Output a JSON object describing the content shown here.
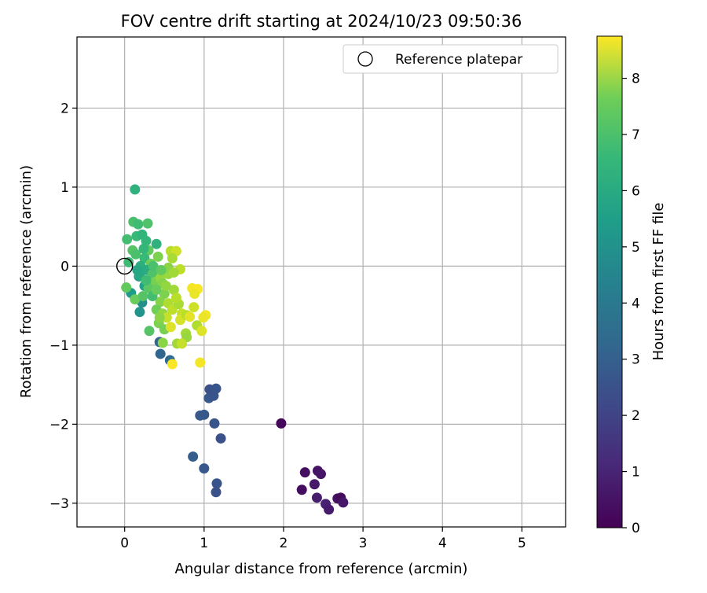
{
  "chart_data": {
    "type": "scatter",
    "title": "FOV centre drift starting at 2024/10/23 09:50:36",
    "xlabel": "Angular distance from reference (arcmin)",
    "ylabel": "Rotation from reference (arcmin)",
    "xlim": [
      -0.6,
      5.55
    ],
    "ylim": [
      -3.3,
      2.9
    ],
    "xticks": [
      0,
      1,
      2,
      3,
      4,
      5
    ],
    "yticks": [
      -3,
      -2,
      -1,
      0,
      1,
      2
    ],
    "grid": true,
    "legend": {
      "position": "top-right",
      "entries": [
        "Reference platepar"
      ]
    },
    "reference_point": {
      "x": 0,
      "y": 0
    },
    "colorbar": {
      "label": "Hours from first FF file",
      "colormap": "viridis",
      "range": [
        0,
        8.75
      ],
      "ticks": [
        0,
        1,
        2,
        3,
        4,
        5,
        6,
        7,
        8
      ]
    },
    "series": [
      {
        "points": [
          {
            "x": 1.97,
            "y": -1.99,
            "c": 0.15
          },
          {
            "x": 2.27,
            "y": -2.61,
            "c": 0.35
          },
          {
            "x": 2.43,
            "y": -2.59,
            "c": 0.45
          },
          {
            "x": 2.47,
            "y": -2.63,
            "c": 0.5
          },
          {
            "x": 2.23,
            "y": -2.83,
            "c": 0.3
          },
          {
            "x": 2.39,
            "y": -2.76,
            "c": 0.6
          },
          {
            "x": 2.42,
            "y": -2.93,
            "c": 0.7
          },
          {
            "x": 2.68,
            "y": -2.94,
            "c": 0.4
          },
          {
            "x": 2.72,
            "y": -2.93,
            "c": 0.25
          },
          {
            "x": 2.75,
            "y": -2.99,
            "c": 0.55
          },
          {
            "x": 2.53,
            "y": -3.01,
            "c": 0.8
          },
          {
            "x": 2.57,
            "y": -3.08,
            "c": 0.65
          },
          {
            "x": 1.07,
            "y": -1.56,
            "c": 2.2
          },
          {
            "x": 1.15,
            "y": -1.55,
            "c": 2.3
          },
          {
            "x": 1.06,
            "y": -1.67,
            "c": 2.4
          },
          {
            "x": 1.12,
            "y": -1.64,
            "c": 2.3
          },
          {
            "x": 0.95,
            "y": -1.89,
            "c": 2.5
          },
          {
            "x": 1.0,
            "y": -1.88,
            "c": 2.4
          },
          {
            "x": 1.13,
            "y": -1.99,
            "c": 2.3
          },
          {
            "x": 1.21,
            "y": -2.18,
            "c": 2.2
          },
          {
            "x": 0.86,
            "y": -2.41,
            "c": 2.6
          },
          {
            "x": 1.0,
            "y": -2.56,
            "c": 2.4
          },
          {
            "x": 1.16,
            "y": -2.75,
            "c": 2.3
          },
          {
            "x": 1.15,
            "y": -2.86,
            "c": 2.2
          },
          {
            "x": 0.44,
            "y": -0.96,
            "c": 2.8
          },
          {
            "x": 0.45,
            "y": -1.11,
            "c": 2.9
          },
          {
            "x": 0.57,
            "y": -1.19,
            "c": 3.0
          },
          {
            "x": 0.22,
            "y": -0.46,
            "c": 4.3
          },
          {
            "x": 0.19,
            "y": -0.58,
            "c": 4.5
          },
          {
            "x": 0.08,
            "y": -0.34,
            "c": 4.8
          },
          {
            "x": 0.18,
            "y": -0.13,
            "c": 4.6
          },
          {
            "x": 0.25,
            "y": -0.25,
            "c": 5.0
          },
          {
            "x": 0.13,
            "y": 0.97,
            "c": 5.6
          },
          {
            "x": 0.11,
            "y": 0.56,
            "c": 6.2
          },
          {
            "x": 0.17,
            "y": 0.53,
            "c": 6.0
          },
          {
            "x": 0.29,
            "y": 0.54,
            "c": 6.3
          },
          {
            "x": 0.03,
            "y": 0.34,
            "c": 6.1
          },
          {
            "x": 0.15,
            "y": 0.38,
            "c": 5.9
          },
          {
            "x": 0.22,
            "y": 0.4,
            "c": 5.7
          },
          {
            "x": 0.27,
            "y": 0.32,
            "c": 5.8
          },
          {
            "x": 0.4,
            "y": 0.28,
            "c": 5.6
          },
          {
            "x": 0.1,
            "y": 0.2,
            "c": 6.4
          },
          {
            "x": 0.14,
            "y": 0.15,
            "c": 6.2
          },
          {
            "x": 0.3,
            "y": 0.2,
            "c": 6.6
          },
          {
            "x": 0.25,
            "y": 0.1,
            "c": 5.9
          },
          {
            "x": 0.05,
            "y": 0.05,
            "c": 6.0
          },
          {
            "x": 0.2,
            "y": 0.0,
            "c": 5.5
          },
          {
            "x": 0.33,
            "y": 0.03,
            "c": 6.8
          },
          {
            "x": 0.28,
            "y": -0.05,
            "c": 5.4
          },
          {
            "x": 0.19,
            "y": -0.12,
            "c": 5.3
          },
          {
            "x": 0.35,
            "y": -0.1,
            "c": 6.3
          },
          {
            "x": 0.42,
            "y": 0.12,
            "c": 7.0
          },
          {
            "x": 0.38,
            "y": -0.2,
            "c": 6.9
          },
          {
            "x": 0.3,
            "y": -0.28,
            "c": 6.5
          },
          {
            "x": 0.02,
            "y": -0.27,
            "c": 6.6
          },
          {
            "x": 0.13,
            "y": -0.42,
            "c": 6.7
          },
          {
            "x": 0.23,
            "y": -0.38,
            "c": 6.4
          },
          {
            "x": 0.45,
            "y": -0.15,
            "c": 7.3
          },
          {
            "x": 0.48,
            "y": -0.22,
            "c": 7.1
          },
          {
            "x": 0.55,
            "y": -0.1,
            "c": 7.4
          },
          {
            "x": 0.58,
            "y": 0.19,
            "c": 7.8
          },
          {
            "x": 0.65,
            "y": 0.19,
            "c": 8.1
          },
          {
            "x": 0.6,
            "y": 0.1,
            "c": 7.6
          },
          {
            "x": 0.7,
            "y": -0.04,
            "c": 7.9
          },
          {
            "x": 0.55,
            "y": -0.02,
            "c": 7.2
          },
          {
            "x": 0.62,
            "y": -0.3,
            "c": 7.5
          },
          {
            "x": 0.5,
            "y": -0.35,
            "c": 7.0
          },
          {
            "x": 0.45,
            "y": -0.45,
            "c": 7.1
          },
          {
            "x": 0.4,
            "y": -0.55,
            "c": 6.8
          },
          {
            "x": 0.55,
            "y": -0.47,
            "c": 7.7
          },
          {
            "x": 0.6,
            "y": -0.55,
            "c": 7.9
          },
          {
            "x": 0.68,
            "y": -0.48,
            "c": 7.6
          },
          {
            "x": 0.72,
            "y": -0.6,
            "c": 8.0
          },
          {
            "x": 0.48,
            "y": -0.6,
            "c": 7.3
          },
          {
            "x": 0.43,
            "y": -0.72,
            "c": 7.0
          },
          {
            "x": 0.5,
            "y": -0.8,
            "c": 6.9
          },
          {
            "x": 0.58,
            "y": -0.77,
            "c": 8.3
          },
          {
            "x": 0.7,
            "y": -0.68,
            "c": 8.2
          },
          {
            "x": 0.78,
            "y": -0.62,
            "c": 7.8
          },
          {
            "x": 0.77,
            "y": -0.85,
            "c": 7.5
          },
          {
            "x": 0.78,
            "y": -0.9,
            "c": 7.4
          },
          {
            "x": 0.48,
            "y": -0.97,
            "c": 7.2
          },
          {
            "x": 0.66,
            "y": -0.98,
            "c": 7.5
          },
          {
            "x": 0.72,
            "y": -0.98,
            "c": 8.0
          },
          {
            "x": 0.31,
            "y": -0.82,
            "c": 6.4
          },
          {
            "x": 0.85,
            "y": -0.28,
            "c": 8.6
          },
          {
            "x": 0.92,
            "y": -0.29,
            "c": 8.7
          },
          {
            "x": 0.88,
            "y": -0.35,
            "c": 8.5
          },
          {
            "x": 0.87,
            "y": -0.52,
            "c": 8.1
          },
          {
            "x": 0.82,
            "y": -0.64,
            "c": 8.4
          },
          {
            "x": 1.02,
            "y": -0.62,
            "c": 8.6
          },
          {
            "x": 0.99,
            "y": -0.65,
            "c": 8.5
          },
          {
            "x": 0.91,
            "y": -0.75,
            "c": 7.7
          },
          {
            "x": 0.97,
            "y": -0.82,
            "c": 8.3
          },
          {
            "x": 0.6,
            "y": -1.24,
            "c": 8.7
          },
          {
            "x": 0.95,
            "y": -1.22,
            "c": 8.6
          },
          {
            "x": 0.35,
            "y": -0.38,
            "c": 6.1
          },
          {
            "x": 0.27,
            "y": -0.18,
            "c": 6.0
          },
          {
            "x": 0.16,
            "y": -0.05,
            "c": 5.2
          },
          {
            "x": 0.4,
            "y": -0.3,
            "c": 6.7
          },
          {
            "x": 0.52,
            "y": -0.25,
            "c": 7.3
          },
          {
            "x": 0.36,
            "y": 0.0,
            "c": 6.2
          },
          {
            "x": 0.46,
            "y": -0.05,
            "c": 6.6
          },
          {
            "x": 0.24,
            "y": 0.22,
            "c": 5.8
          },
          {
            "x": 0.62,
            "y": -0.08,
            "c": 7.5
          },
          {
            "x": 0.53,
            "y": -0.65,
            "c": 8.0
          },
          {
            "x": 0.65,
            "y": -0.4,
            "c": 7.8
          },
          {
            "x": 0.44,
            "y": -0.65,
            "c": 7.2
          }
        ]
      }
    ]
  }
}
